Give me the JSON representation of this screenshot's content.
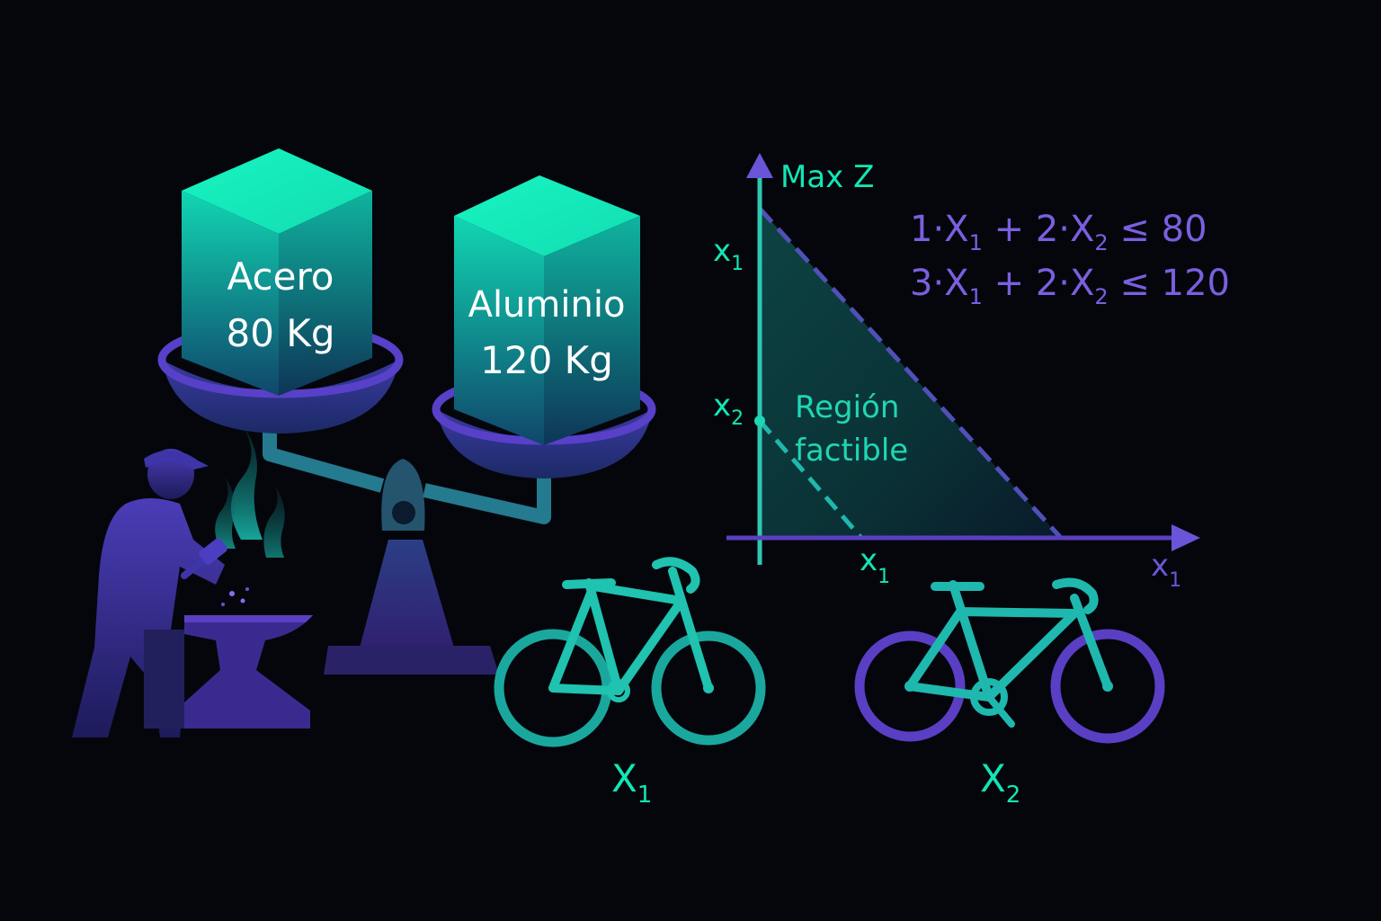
{
  "colors": {
    "background": "#05060c",
    "teal": "#12e6b4",
    "teal_mid": "#1fb8ae",
    "purple": "#5b3fc2",
    "lavender": "#8a6cf0",
    "white": "#ffffff"
  },
  "blocks": {
    "steel": {
      "name": "Acero",
      "weight": "80 Kg"
    },
    "aluminum": {
      "name": "Aluminio",
      "weight": "120 Kg"
    }
  },
  "graph": {
    "objective": "Max Z",
    "y_label_top": {
      "base": "x",
      "sub": "1"
    },
    "y_label_mid": {
      "base": "x",
      "sub": "2"
    },
    "x_label_mid": {
      "base": "x",
      "sub": "1"
    },
    "x_label_end": {
      "base": "x",
      "sub": "1"
    },
    "region_line1": "Región",
    "region_line2": "factible"
  },
  "constraints": [
    {
      "c1": "1·X",
      "s1": "1",
      "op": " + ",
      "c2": "2·X",
      "s2": "2",
      "rhs": " ≤ 80"
    },
    {
      "c1": "3·X",
      "s1": "1",
      "op": " + ",
      "c2": "2·X",
      "s2": "2",
      "rhs": " ≤ 120"
    }
  ],
  "bikes": {
    "bike1": {
      "base": "X",
      "sub": "1"
    },
    "bike2": {
      "base": "X",
      "sub": "2"
    }
  },
  "icons": [
    "blacksmith-icon",
    "anvil-icon",
    "balance-scale-icon",
    "bicycle-icon"
  ]
}
